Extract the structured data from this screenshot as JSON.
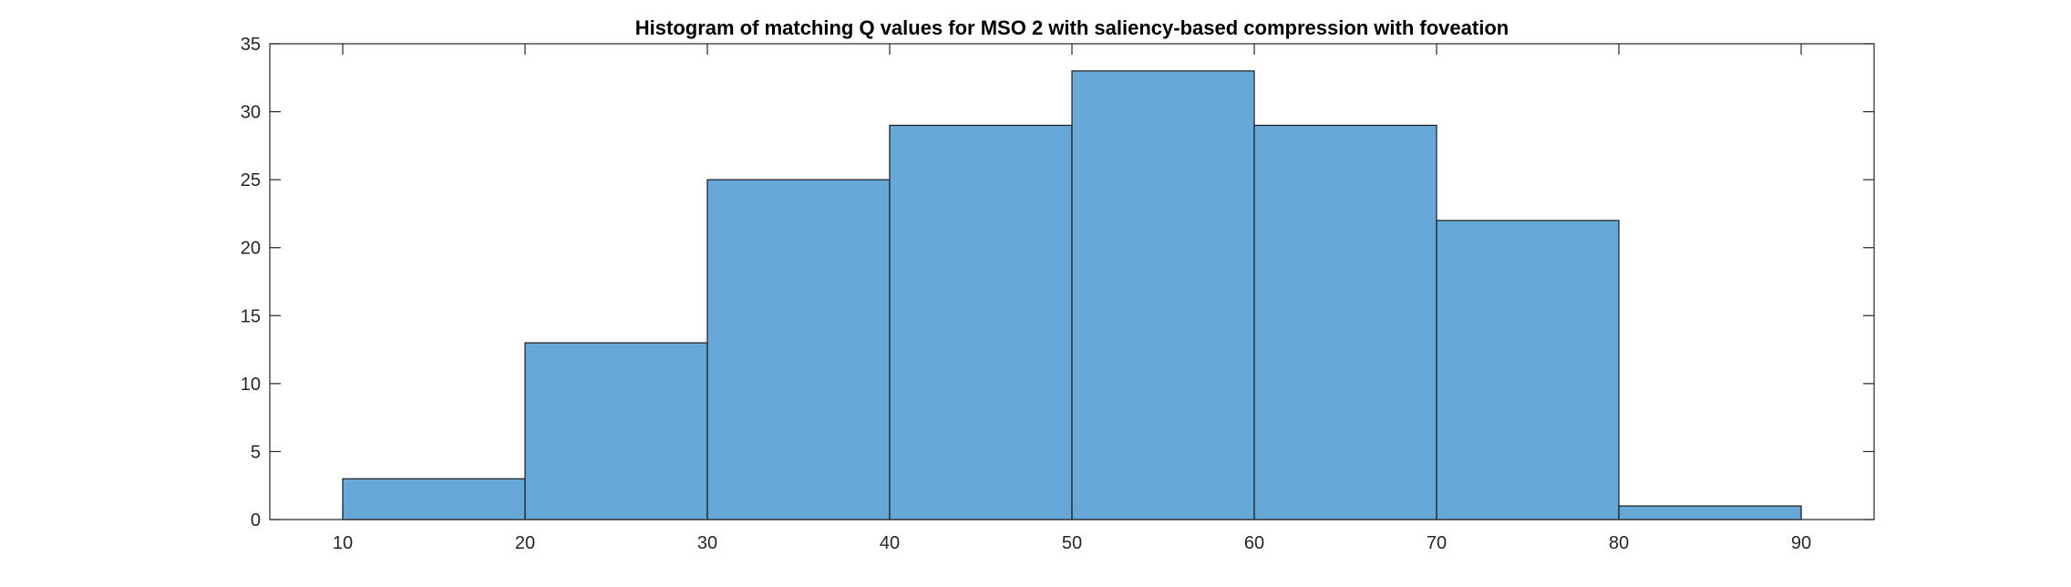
{
  "chart_data": {
    "type": "bar",
    "title": "Histogram of matching Q values for MSO 2 with saliency-based compression with foveation",
    "xlabel": "",
    "ylabel": "",
    "bin_edges": [
      10,
      20,
      30,
      40,
      50,
      60,
      70,
      80,
      90
    ],
    "values": [
      3,
      13,
      25,
      29,
      33,
      29,
      22,
      1
    ],
    "xlim": [
      6,
      94
    ],
    "ylim": [
      0,
      35
    ],
    "xticks": [
      10,
      20,
      30,
      40,
      50,
      60,
      70,
      80,
      90
    ],
    "yticks": [
      0,
      5,
      10,
      15,
      20,
      25,
      30,
      35
    ],
    "grid": false,
    "legend": "none",
    "colors": {
      "bar_fill": "#66a8d7",
      "bar_edge": "#1a1a1a",
      "axes": "#262626"
    }
  }
}
